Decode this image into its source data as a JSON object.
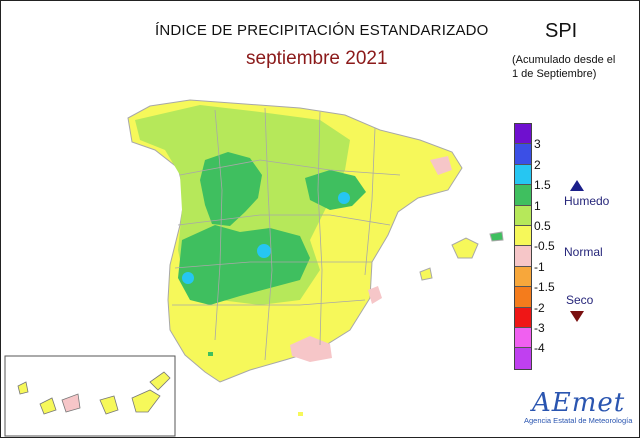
{
  "header": {
    "title": "ÍNDICE DE PRECIPITACIÓN ESTANDARIZADO",
    "subtitle": "septiembre 2021",
    "index_name": "SPI",
    "note_line1": "(Acumulado desde el",
    "note_line2": "1 de Septiembre)"
  },
  "legend": {
    "ticks": [
      "3",
      "2",
      "1.5",
      "1",
      "0.5",
      "-0.5",
      "-1",
      "-1.5",
      "-2",
      "-3",
      "-4"
    ],
    "colors": [
      "#6f10cf",
      "#3b4fe6",
      "#26c6f2",
      "#3fbf5f",
      "#b6e85a",
      "#f6f85a",
      "#f6c6c8",
      "#f7a73b",
      "#f47c1c",
      "#ef1616",
      "#f060f0",
      "#c040f0"
    ],
    "wet_label": "Humedo",
    "normal_label": "Normal",
    "dry_label": "Seco"
  },
  "logo": {
    "name": "AEmet",
    "caption": "Agencia Estatal de Meteorología"
  },
  "map_colors": {
    "sea": "#ffffff",
    "normal": "#f6f85a",
    "humid_light": "#b6e85a",
    "humid": "#3fbf5f",
    "very_humid": "#26c6f2",
    "dry": "#f6c6c8",
    "dry_moderate": "#f7a73b",
    "borders": "#a8a8a8"
  }
}
